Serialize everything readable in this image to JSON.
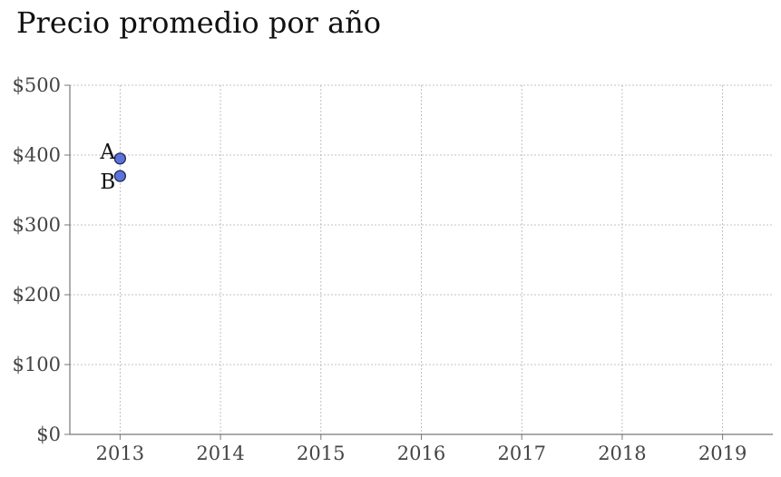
{
  "chart_data": {
    "type": "scatter",
    "title": "Precio promedio por año",
    "xlabel": "",
    "ylabel": "",
    "xlim": [
      2012.5,
      2019.5
    ],
    "ylim": [
      0,
      500
    ],
    "x_ticks": [
      2013,
      2014,
      2015,
      2016,
      2017,
      2018,
      2019
    ],
    "y_ticks": [
      0,
      100,
      200,
      300,
      400,
      500
    ],
    "y_tick_format": "currency_usd",
    "grid": true,
    "legend": "none",
    "points": [
      {
        "label": "A",
        "x": 2013,
        "y": 395
      },
      {
        "label": "B",
        "x": 2013,
        "y": 370
      }
    ],
    "colors": {
      "marker_fill": "#5B73D9",
      "marker_edge": "#1F2A55",
      "grid": "#B0B0B0",
      "axis": "#777777",
      "tick_text": "#444444",
      "label_text": "#111111"
    }
  }
}
